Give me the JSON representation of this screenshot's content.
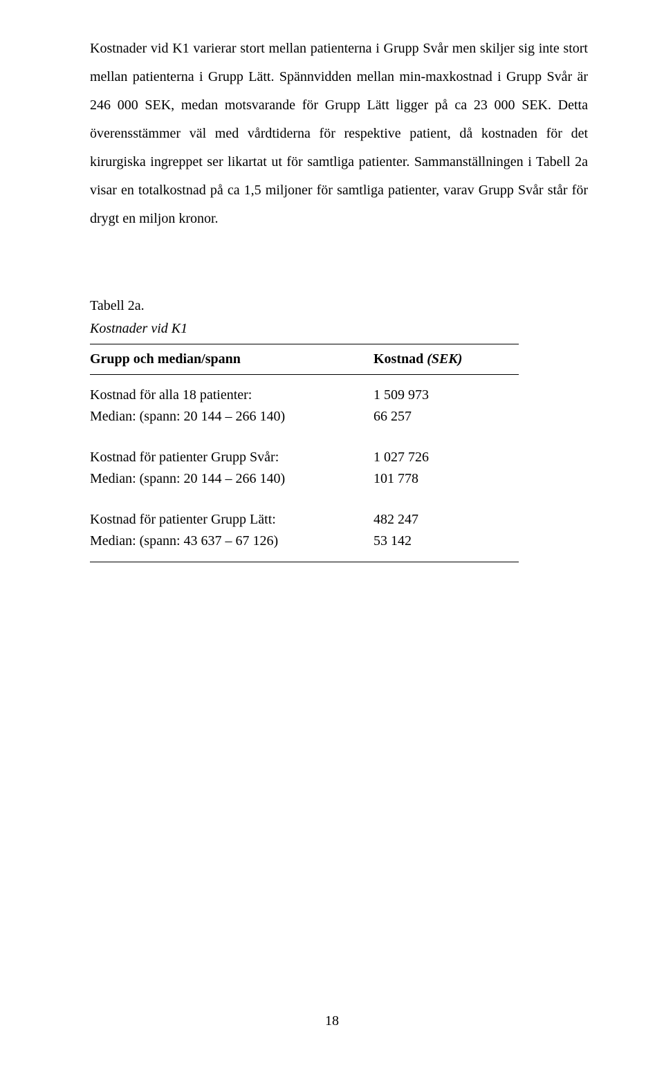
{
  "paragraph": "Kostnader vid K1 varierar stort mellan patienterna i Grupp Svår men skiljer sig inte stort mellan patienterna i Grupp Lätt. Spännvidden mellan min-maxkostnad i Grupp Svår är 246 000 SEK, medan motsvarande för Grupp Lätt ligger på ca 23 000 SEK. Detta överensstämmer väl med vårdtiderna för respektive patient, då kostnaden för det kirurgiska ingreppet ser likartat ut för samtliga patienter. Sammanställningen i Tabell 2a visar en totalkostnad på ca 1,5 miljoner för samtliga patienter, varav Grupp Svår står för drygt en miljon kronor.",
  "table": {
    "title": "Tabell 2a.",
    "subtitle": "Kostnader vid K1",
    "header": {
      "col1": "Grupp och median/spann",
      "col2_prefix": "Kostnad ",
      "col2_italic": "(SEK)"
    },
    "groups": [
      {
        "label": "Kostnad för alla 18 patienter:",
        "label_value": "1 509 973",
        "median": "Median: (spann: 20 144 – 266 140)",
        "median_value": "66 257"
      },
      {
        "label": "Kostnad för patienter Grupp Svår:",
        "label_value": "1 027 726",
        "median": "Median: (spann: 20 144 – 266 140)",
        "median_value": "101 778"
      },
      {
        "label": "Kostnad för patienter Grupp Lätt:",
        "label_value": "482 247",
        "median": "Median: (spann: 43 637 – 67 126)",
        "median_value": "53 142"
      }
    ]
  },
  "page_number": "18"
}
